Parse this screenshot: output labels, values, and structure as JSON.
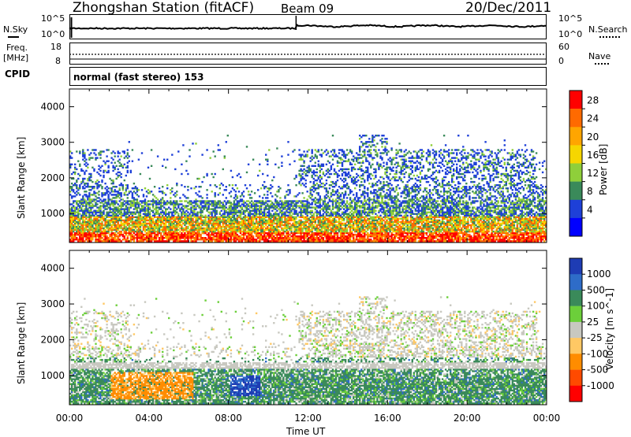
{
  "header": {
    "station_title": "Zhongshan Station (fitACF)",
    "beam_label": "Beam 09",
    "date_label": "20/Dec/2011"
  },
  "top_panels": {
    "nsky_label": "N.Sky",
    "nsearch_label": "N.Search",
    "noise_ticks_left": [
      "10^5",
      "10^0"
    ],
    "noise_ticks_right": [
      "10^5",
      "10^0"
    ],
    "freq_label_line1": "Freq.",
    "freq_label_line2": "[MHz]",
    "freq_ticks": [
      "18",
      "8"
    ],
    "nave_label": "Nave",
    "nave_ticks": [
      "60",
      "0"
    ],
    "cpid_label": "CPID",
    "cpid_text": "normal (fast stereo) 153"
  },
  "chart_data": [
    {
      "type": "heatmap",
      "name": "power-panel",
      "ylabel": "Slant Range [km]",
      "yticks": [
        "4000",
        "3000",
        "2000",
        "1000"
      ],
      "ylim": [
        180,
        4500
      ],
      "colorbar": {
        "label": "Power [dB]",
        "ticks": [
          "28",
          "24",
          "20",
          "16",
          "12",
          "8",
          "4"
        ],
        "colors": [
          "#ff0000",
          "#ff6a00",
          "#ffa500",
          "#f6d600",
          "#8fcf3a",
          "#3a8a5a",
          "#1e40d8",
          "#0000ff"
        ]
      },
      "bands": [
        {
          "x": [
            0,
            24
          ],
          "y": [
            200,
            450
          ],
          "value": 22
        },
        {
          "x": [
            2,
            7
          ],
          "y": [
            450,
            900
          ],
          "value": 20
        },
        {
          "x": [
            10,
            14
          ],
          "y": [
            800,
            1200
          ],
          "value": 14
        },
        {
          "x": [
            15,
            23
          ],
          "y": [
            1500,
            2800
          ],
          "value": 8
        }
      ]
    },
    {
      "type": "heatmap",
      "name": "velocity-panel",
      "ylabel": "Slant Range [km]",
      "yticks": [
        "4000",
        "3000",
        "2000",
        "1000"
      ],
      "ylim": [
        180,
        4500
      ],
      "colorbar": {
        "label": "Velocity [m s^-1]",
        "ticks": [
          "1000",
          "500",
          "100",
          "25",
          "-25",
          "-100",
          "-500",
          "-1000"
        ],
        "colors": [
          "#1e3cb4",
          "#2e6cc8",
          "#3a8a5a",
          "#6ccf3a",
          "#c8c8c0",
          "#ffc864",
          "#ff8c00",
          "#ff4a00",
          "#ff0000"
        ]
      },
      "bands": [
        {
          "x": [
            0,
            24
          ],
          "y": [
            200,
            700
          ],
          "value": 100
        },
        {
          "x": [
            2,
            6
          ],
          "y": [
            300,
            1100
          ],
          "value": -300
        },
        {
          "x": [
            8,
            9.5
          ],
          "y": [
            500,
            1100
          ],
          "value": 800
        },
        {
          "x": [
            12,
            24
          ],
          "y": [
            1500,
            2600
          ],
          "value": 0
        }
      ]
    }
  ],
  "xaxis": {
    "ticks": [
      "00:00",
      "04:00",
      "08:00",
      "12:00",
      "16:00",
      "20:00",
      "00:00"
    ],
    "label": "Time UT",
    "range_hours": [
      0,
      24
    ]
  },
  "colors": {
    "axis": "#000000",
    "background": "#ffffff"
  }
}
